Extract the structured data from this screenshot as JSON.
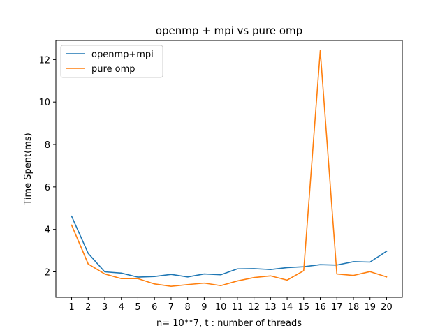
{
  "chart_data": {
    "type": "line",
    "title": "openmp + mpi vs pure omp",
    "xlabel": "n= 10**7, t : number of threads",
    "ylabel": "Time Spent(ms)",
    "x": [
      1,
      2,
      3,
      4,
      5,
      6,
      7,
      8,
      9,
      10,
      11,
      12,
      13,
      14,
      15,
      16,
      17,
      18,
      19,
      20
    ],
    "xlim": [
      0.05,
      20.95
    ],
    "ylim": [
      0.8,
      12.9
    ],
    "yticks": [
      2,
      4,
      6,
      8,
      10,
      12
    ],
    "grid": false,
    "legend_position": "top-left",
    "series": [
      {
        "name": "openmp+mpi",
        "color": "#1f77b4",
        "values": [
          4.62,
          2.87,
          2.0,
          1.94,
          1.75,
          1.78,
          1.88,
          1.76,
          1.9,
          1.86,
          2.14,
          2.15,
          2.11,
          2.2,
          2.24,
          2.34,
          2.32,
          2.48,
          2.46,
          2.97
        ]
      },
      {
        "name": "pure omp",
        "color": "#ff7f0e",
        "values": [
          4.2,
          2.37,
          1.9,
          1.68,
          1.68,
          1.43,
          1.32,
          1.4,
          1.47,
          1.35,
          1.57,
          1.73,
          1.81,
          1.61,
          2.05,
          12.42,
          1.9,
          1.83,
          2.01,
          1.76
        ]
      }
    ]
  }
}
